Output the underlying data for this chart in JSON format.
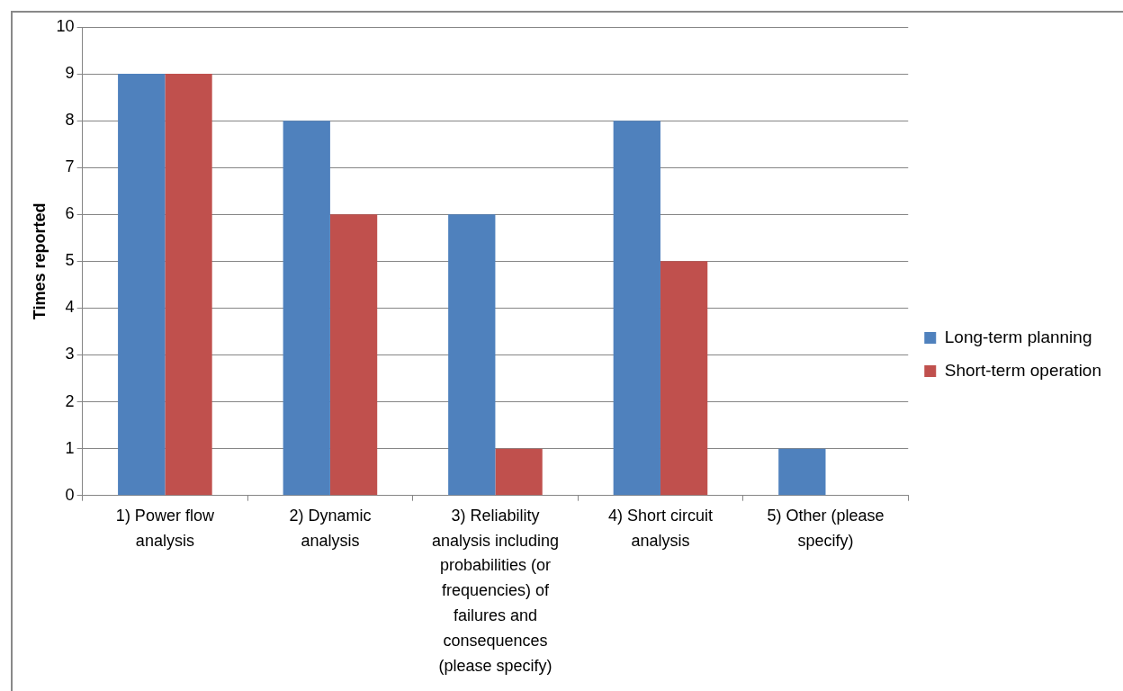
{
  "chart_data": {
    "type": "bar",
    "ylabel": "Times reported",
    "categories": [
      "1) Power flow analysis",
      "2) Dynamic analysis",
      "3) Reliability analysis including probabilities (or frequencies) of failures and consequences (please specify)",
      "4) Short circuit analysis",
      "5) Other (please specify)"
    ],
    "series": [
      {
        "name": "Long-term planning",
        "color": "#4f81bd",
        "values": [
          9,
          8,
          6,
          8,
          1
        ]
      },
      {
        "name": "Short-term operation",
        "color": "#c0504d",
        "values": [
          9,
          6,
          1,
          5,
          0
        ]
      }
    ],
    "ylim": [
      0,
      10
    ],
    "yticks": [
      0,
      1,
      2,
      3,
      4,
      5,
      6,
      7,
      8,
      9,
      10
    ],
    "grid": "y",
    "legend": "right"
  }
}
